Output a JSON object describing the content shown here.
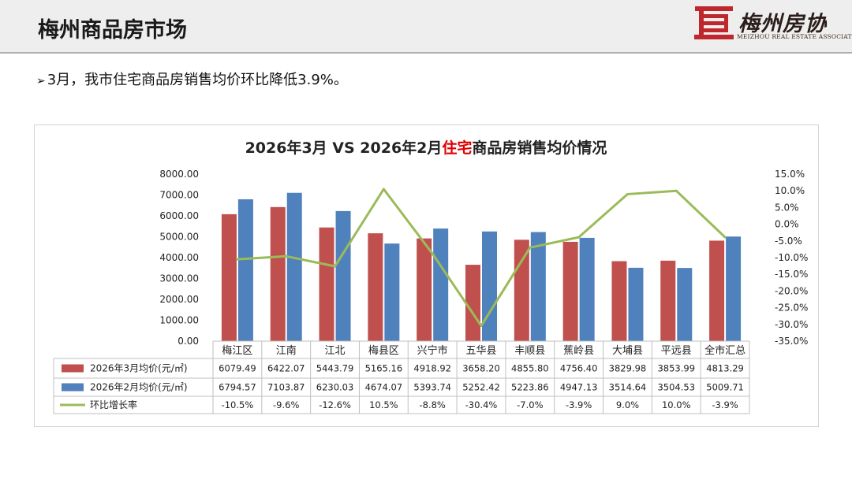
{
  "header": {
    "title": "梅州商品房市场"
  },
  "logo": {
    "name": "梅州房协",
    "subtitle": "MEIZHOU REAL ESTATE ASSOCIATION",
    "mark": "房"
  },
  "bullet": {
    "arrow": "➢",
    "text": "3月，我市住宅商品房销售均价环比降低3.9%。"
  },
  "colors": {
    "march": "#c0504d",
    "feb": "#4f81bd",
    "mom": "#9bbb59"
  },
  "chart_data": {
    "type": "bar",
    "title_parts": [
      "2026年3月 VS 2026年2月",
      "住宅",
      "商品房销售均价情况"
    ],
    "categories": [
      "梅江区",
      "江南",
      "江北",
      "梅县区",
      "兴宁市",
      "五华县",
      "丰顺县",
      "蕉岭县",
      "大埔县",
      "平远县",
      "全市汇总"
    ],
    "series": [
      {
        "name": "2026年3月均价(元/㎡)",
        "type": "bar",
        "color": "#c0504d",
        "values": [
          6079.49,
          6422.07,
          5443.79,
          5165.16,
          4918.92,
          3658.2,
          4855.8,
          4756.4,
          3829.98,
          3853.99,
          4813.29
        ],
        "labels": [
          "6079.49",
          "6422.07",
          "5443.79",
          "5165.16",
          "4918.92",
          "3658.20",
          "4855.80",
          "4756.40",
          "3829.98",
          "3853.99",
          "4813.29"
        ]
      },
      {
        "name": "2026年2月均价(元/㎡)",
        "type": "bar",
        "color": "#4f81bd",
        "values": [
          6794.57,
          7103.87,
          6230.03,
          4674.07,
          5393.74,
          5252.42,
          5223.86,
          4947.13,
          3514.64,
          3504.53,
          5009.71
        ],
        "labels": [
          "6794.57",
          "7103.87",
          "6230.03",
          "4674.07",
          "5393.74",
          "5252.42",
          "5223.86",
          "4947.13",
          "3514.64",
          "3504.53",
          "5009.71"
        ]
      },
      {
        "name": "环比增长率",
        "type": "line",
        "axis": "right",
        "color": "#9bbb59",
        "values": [
          -10.5,
          -9.6,
          -12.6,
          10.5,
          -8.8,
          -30.4,
          -7.0,
          -3.9,
          9.0,
          10.0,
          -3.9
        ],
        "labels": [
          "-10.5%",
          "-9.6%",
          "-12.6%",
          "10.5%",
          "-8.8%",
          "-30.4%",
          "-7.0%",
          "-3.9%",
          "9.0%",
          "10.0%",
          "-3.9%"
        ]
      }
    ],
    "left_axis": {
      "min": 0,
      "max": 8000,
      "step": 1000,
      "ticks": [
        "0.00",
        "1000.00",
        "2000.00",
        "3000.00",
        "4000.00",
        "5000.00",
        "6000.00",
        "7000.00",
        "8000.00"
      ]
    },
    "right_axis": {
      "min": -35,
      "max": 15,
      "step": 5,
      "ticks": [
        "-35.0%",
        "-30.0%",
        "-25.0%",
        "-20.0%",
        "-15.0%",
        "-10.0%",
        "-5.0%",
        "0.0%",
        "5.0%",
        "10.0%",
        "15.0%"
      ]
    },
    "grid": false,
    "legend": "data-table-below"
  }
}
